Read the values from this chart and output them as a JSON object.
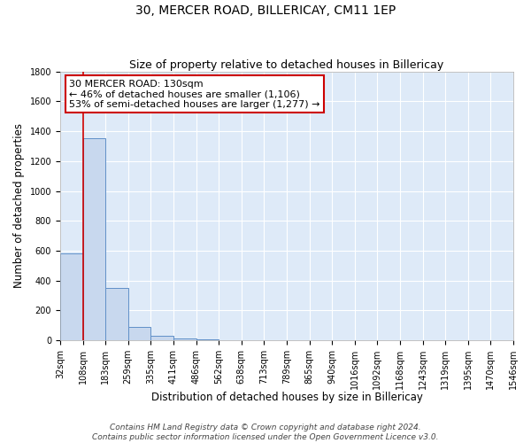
{
  "title": "30, MERCER ROAD, BILLERICAY, CM11 1EP",
  "subtitle": "Size of property relative to detached houses in Billericay",
  "xlabel": "Distribution of detached houses by size in Billericay",
  "ylabel": "Number of detached properties",
  "bar_color": "#c8d8ee",
  "bar_edge_color": "#6090c8",
  "bar_heights": [
    580,
    1355,
    350,
    90,
    30,
    10,
    5,
    0,
    0,
    0,
    0,
    0,
    0,
    0,
    0,
    0,
    0,
    0,
    0,
    0
  ],
  "bin_labels": [
    "32sqm",
    "108sqm",
    "183sqm",
    "259sqm",
    "335sqm",
    "411sqm",
    "486sqm",
    "562sqm",
    "638sqm",
    "713sqm",
    "789sqm",
    "865sqm",
    "940sqm",
    "1016sqm",
    "1092sqm",
    "1168sqm",
    "1243sqm",
    "1319sqm",
    "1395sqm",
    "1470sqm",
    "1546sqm"
  ],
  "n_bins": 20,
  "ylim": [
    0,
    1800
  ],
  "yticks": [
    0,
    200,
    400,
    600,
    800,
    1000,
    1200,
    1400,
    1600,
    1800
  ],
  "red_line_x": 1,
  "annotation_line1": "30 MERCER ROAD: 130sqm",
  "annotation_line2": "← 46% of detached houses are smaller (1,106)",
  "annotation_line3": "53% of semi-detached houses are larger (1,277) →",
  "annotation_box_color": "#ffffff",
  "annotation_box_edge_color": "#cc0000",
  "footer_line1": "Contains HM Land Registry data © Crown copyright and database right 2024.",
  "footer_line2": "Contains public sector information licensed under the Open Government Licence v3.0.",
  "background_color": "#deeaf8",
  "grid_color": "#ffffff",
  "title_fontsize": 10,
  "subtitle_fontsize": 9,
  "axis_label_fontsize": 8.5,
  "tick_fontsize": 7,
  "annotation_fontsize": 8,
  "footer_fontsize": 6.5
}
